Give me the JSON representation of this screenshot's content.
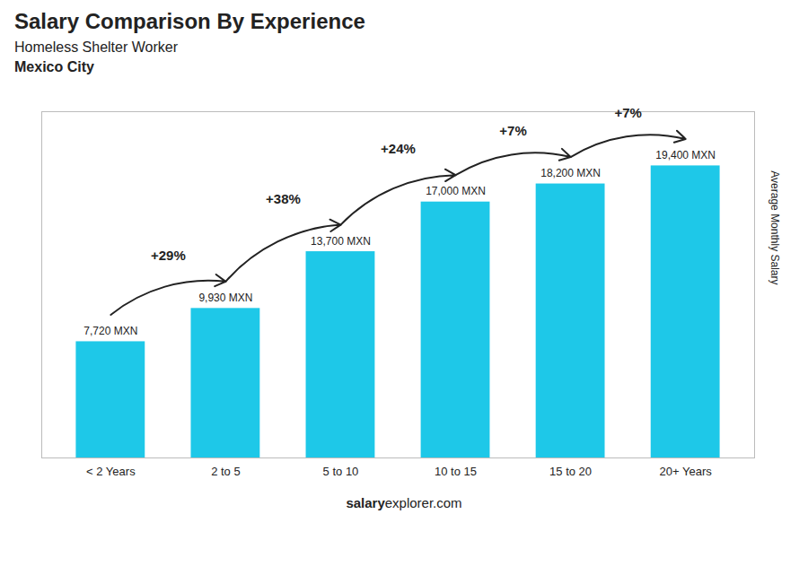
{
  "chart_data": {
    "type": "bar",
    "title": "Salary Comparison By Experience",
    "subtitle": [
      "Homeless Shelter Worker",
      "Mexico City"
    ],
    "caption": [
      "salary",
      "explorer.com"
    ],
    "ylabel": "Average Monthly Salary",
    "categories": [
      "< 2 Years",
      "2 to 5",
      "5 to 10",
      "10 to 15",
      "15 to 20",
      "20+ Years"
    ],
    "values": [
      7720,
      9930,
      13700,
      17000,
      18200,
      19400
    ],
    "value_labels": [
      "7,720 MXN",
      "9,930 MXN",
      "13,700 MXN",
      "17,000 MXN",
      "18,200 MXN",
      "19,400 MXN"
    ],
    "data_labels": true,
    "annotations": [
      "+29%",
      "+38%",
      "+24%",
      "+7%",
      "+7%"
    ],
    "color": "#1ec8e8",
    "ylim": [
      0,
      23000
    ],
    "tick_labels": "x",
    "grid": false
  }
}
